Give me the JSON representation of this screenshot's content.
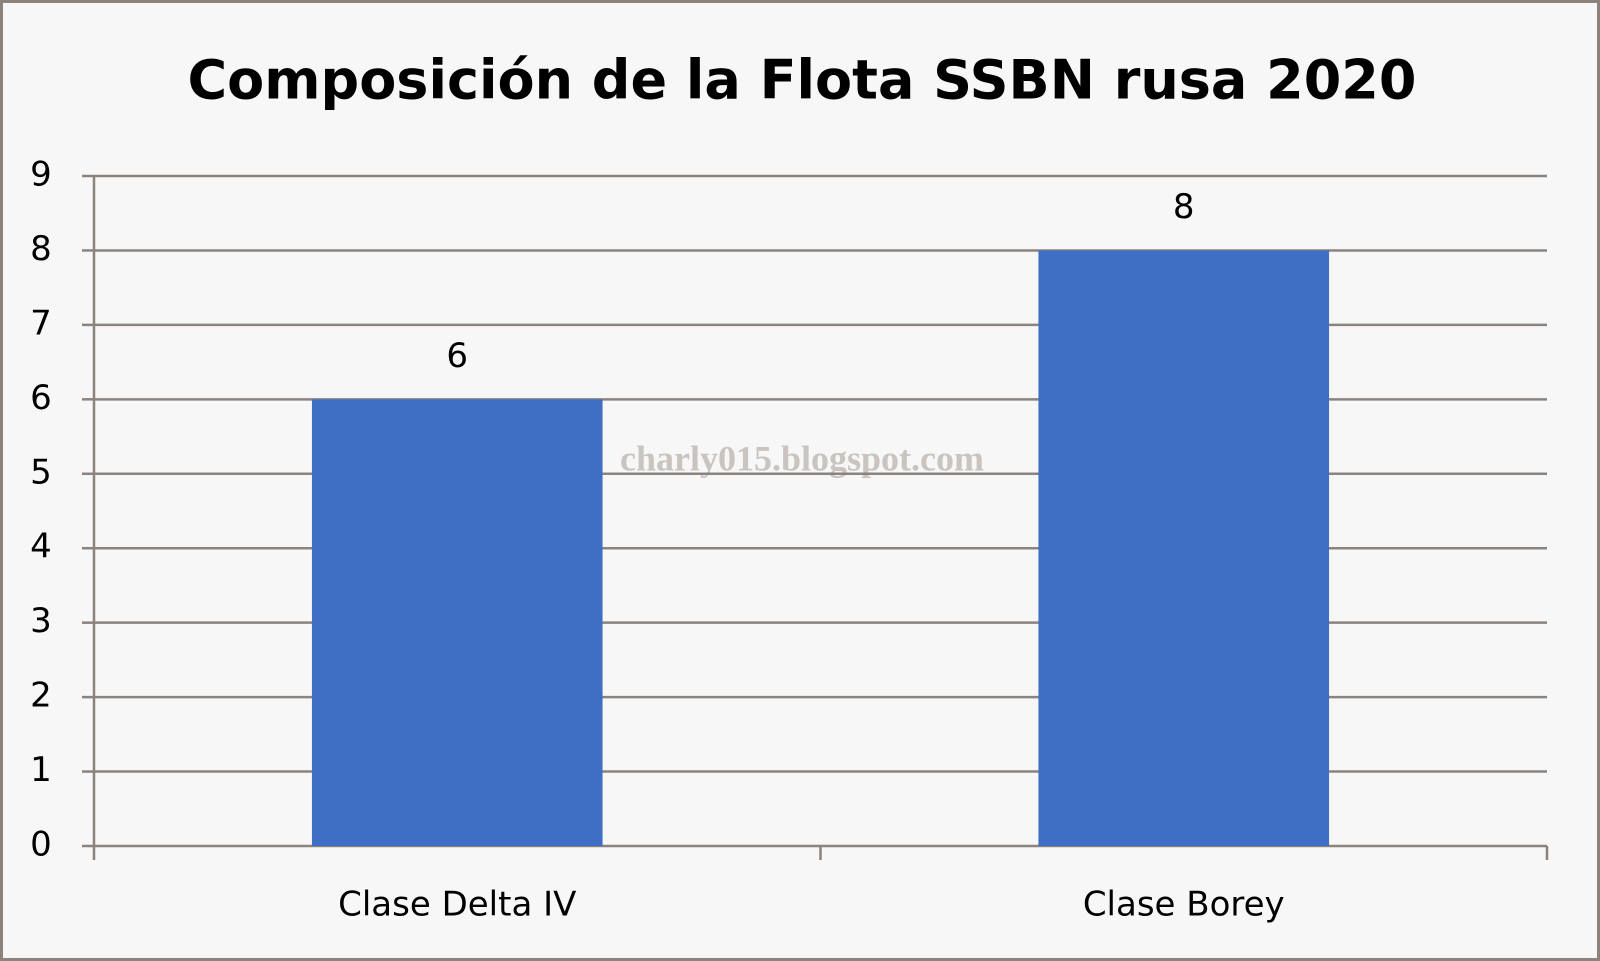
{
  "chart_data": {
    "type": "bar",
    "title": "Composición de la Flota SSBN rusa 2020",
    "categories": [
      "Clase Delta IV",
      "Clase Borey"
    ],
    "values": [
      6,
      8
    ],
    "color": "#3f6fc4",
    "ylim": [
      0,
      9
    ],
    "yticks": [
      0,
      1,
      2,
      3,
      4,
      5,
      6,
      7,
      8,
      9
    ],
    "grid": true,
    "watermark": "charly015.blogspot.com"
  }
}
